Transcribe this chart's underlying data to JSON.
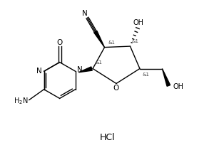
{
  "background": "#ffffff",
  "figsize": [
    3.14,
    2.11
  ],
  "dpi": 100,
  "line_color": "#000000",
  "line_width": 1.0,
  "font_size": 7.0,
  "hcl_fontsize": 9,
  "xlim": [
    0,
    10
  ],
  "ylim": [
    0,
    7
  ]
}
